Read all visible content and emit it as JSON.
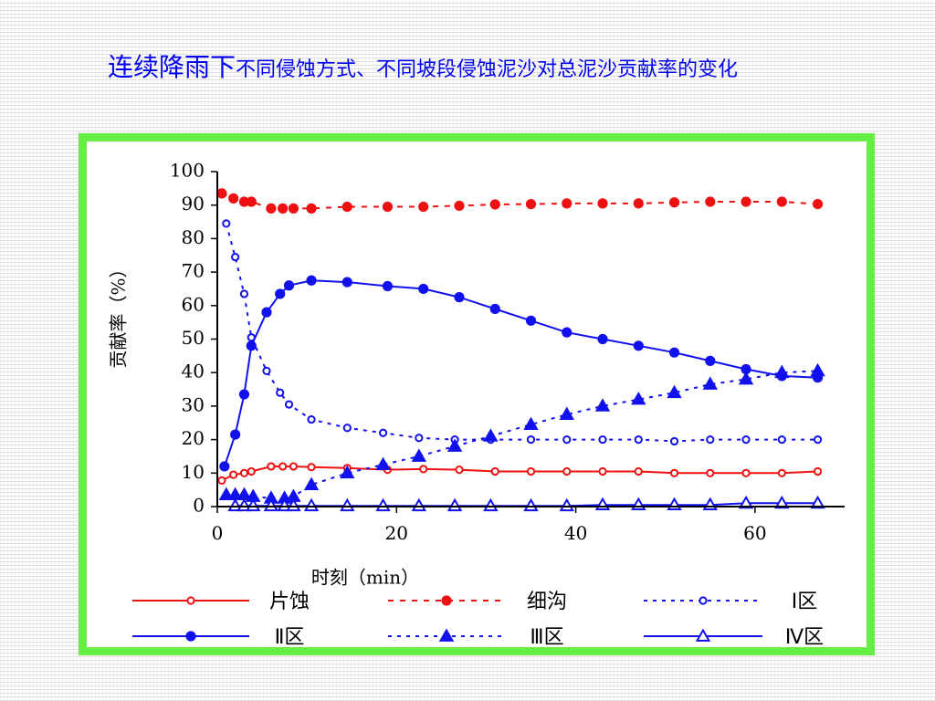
{
  "slide": {
    "title_main": "连续降雨下",
    "title_rest": "不同侵蚀方式、不同坡段侵蚀泥沙对总泥沙贡献率的变化"
  },
  "chart_data": {
    "type": "line",
    "xlabel": "时刻（min）",
    "ylabel": "贡献率（%）",
    "xlim": [
      0,
      70
    ],
    "ylim": [
      0,
      100
    ],
    "xticks": [
      0,
      20,
      40,
      60
    ],
    "yticks": [
      0,
      10,
      20,
      30,
      40,
      50,
      60,
      70,
      80,
      90,
      100
    ],
    "grid": false,
    "legend_position": "bottom",
    "series": [
      {
        "name": "片蚀",
        "color": "#ee1111",
        "dash": "solid",
        "marker": "circle-open",
        "x": [
          0.5,
          1.8,
          3,
          3.8,
          6,
          7.3,
          8.5,
          10.5,
          14.5,
          19,
          23,
          27,
          31,
          35,
          39,
          43,
          47,
          51,
          55,
          59,
          63,
          67
        ],
        "y": [
          7.8,
          9.5,
          10,
          10.5,
          12,
          12,
          12,
          11.8,
          11.5,
          11,
          11.2,
          11,
          10.5,
          10.5,
          10.5,
          10.5,
          10.5,
          10,
          10,
          10,
          10,
          10.5
        ]
      },
      {
        "name": "细沟",
        "color": "#ee1111",
        "dash": "6,7",
        "marker": "circle-filled",
        "x": [
          0.5,
          1.8,
          3,
          3.8,
          6,
          7.3,
          8.5,
          10.5,
          14.5,
          19,
          23,
          27,
          31,
          35,
          39,
          43,
          47,
          51,
          55,
          59,
          63,
          67
        ],
        "y": [
          93.5,
          92,
          91,
          91,
          89,
          89,
          89,
          89,
          89.5,
          89.5,
          89.5,
          89.8,
          90.2,
          90.3,
          90.5,
          90.5,
          90.5,
          90.8,
          91,
          91,
          91,
          90.3
        ]
      },
      {
        "name": "Ⅰ区",
        "color": "#1111ee",
        "dash": "4,6",
        "marker": "circle-open",
        "x": [
          1,
          2,
          3,
          3.8,
          5.5,
          7,
          8,
          10.5,
          14.5,
          18.5,
          22.5,
          26.5,
          30.5,
          35,
          39,
          43,
          47,
          51,
          55,
          59,
          63,
          67
        ],
        "y": [
          84.5,
          74.5,
          63.5,
          50.5,
          40.5,
          34,
          30.5,
          26,
          23.5,
          22,
          20.5,
          20,
          20,
          20,
          20,
          20,
          20,
          19.5,
          20,
          20,
          20,
          20
        ]
      },
      {
        "name": "Ⅱ区",
        "color": "#1111ee",
        "dash": "solid",
        "marker": "circle-filled",
        "x": [
          0.8,
          2,
          3,
          3.8,
          5.5,
          7,
          8,
          10.5,
          14.5,
          19,
          23,
          27,
          31,
          35,
          39,
          43,
          47,
          51,
          55,
          59,
          63,
          67
        ],
        "y": [
          12,
          21.5,
          33.5,
          48,
          58,
          63.5,
          66,
          67.5,
          67,
          65.8,
          65,
          62.5,
          59,
          55.5,
          52,
          50,
          48,
          46,
          43.5,
          41,
          39,
          38.5
        ]
      },
      {
        "name": "Ⅲ区",
        "color": "#1111ee",
        "dash": "4,6",
        "marker": "triangle-filled",
        "x": [
          1,
          2,
          3,
          4,
          6,
          7.5,
          8.5,
          10.5,
          14.5,
          18.5,
          22.5,
          26.5,
          30.5,
          35,
          39,
          43,
          47,
          51,
          55,
          59,
          63,
          67
        ],
        "y": [
          3.5,
          3.5,
          3.5,
          3,
          2.5,
          2.5,
          3,
          6.5,
          10,
          12.5,
          15,
          18,
          21,
          24.5,
          27.5,
          30,
          32,
          34,
          36.5,
          38,
          40,
          40.5
        ]
      },
      {
        "name": "Ⅳ区",
        "color": "#1111ee",
        "dash": "solid",
        "marker": "triangle-open",
        "x": [
          2,
          3,
          4,
          6,
          7.5,
          8.5,
          10.5,
          14.5,
          18.5,
          22.5,
          26.5,
          30.5,
          35,
          39,
          43,
          47,
          51,
          55,
          59,
          63,
          67
        ],
        "y": [
          0.2,
          0.2,
          0.2,
          0.2,
          0.2,
          0.2,
          0.2,
          0.2,
          0.2,
          0.2,
          0.2,
          0.2,
          0.2,
          0.2,
          0.5,
          0.5,
          0.5,
          0.5,
          1,
          1,
          1
        ]
      }
    ]
  }
}
